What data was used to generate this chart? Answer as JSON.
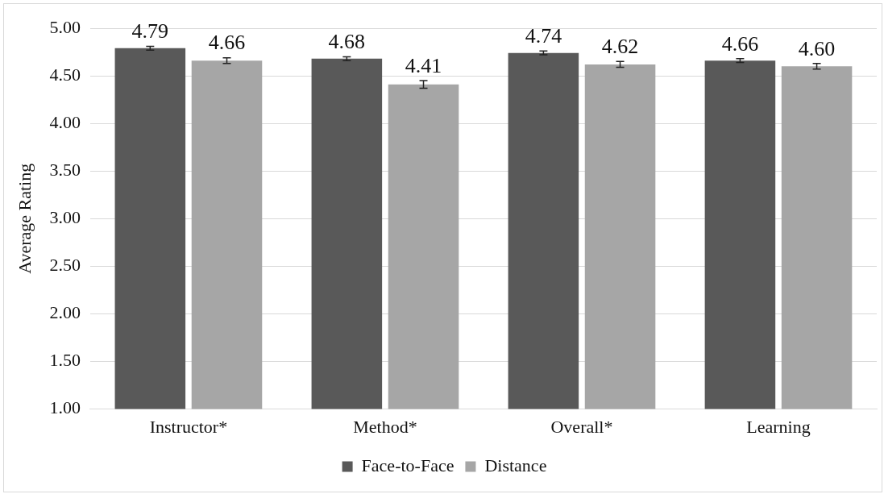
{
  "chart_data": {
    "type": "bar",
    "ylabel": "Average Rating",
    "categories": [
      "Instructor*",
      "Method*",
      "Overall*",
      "Learning"
    ],
    "series": [
      {
        "name": "Face-to-Face",
        "color": "#595959",
        "values": [
          4.79,
          4.68,
          4.74,
          4.66
        ],
        "value_labels": [
          "4.79",
          "4.68",
          "4.74",
          "4.66"
        ],
        "errors": [
          0.02,
          0.02,
          0.02,
          0.02
        ]
      },
      {
        "name": "Distance",
        "color": "#a6a6a6",
        "values": [
          4.66,
          4.41,
          4.62,
          4.6
        ],
        "value_labels": [
          "4.66",
          "4.41",
          "4.62",
          "4.60"
        ],
        "errors": [
          0.03,
          0.04,
          0.03,
          0.03
        ]
      }
    ],
    "ylim": [
      1,
      5
    ],
    "yticks": [
      {
        "value": 1,
        "label": "1.00"
      },
      {
        "value": 1.5,
        "label": "1.50"
      },
      {
        "value": 2,
        "label": "2.00"
      },
      {
        "value": 2.5,
        "label": "2.50"
      },
      {
        "value": 3,
        "label": "3.00"
      },
      {
        "value": 3.5,
        "label": "3.50"
      },
      {
        "value": 4,
        "label": "4.00"
      },
      {
        "value": 4.5,
        "label": "4.50"
      },
      {
        "value": 5,
        "label": "5.00"
      }
    ],
    "grid": "y",
    "legend": "bottom"
  }
}
